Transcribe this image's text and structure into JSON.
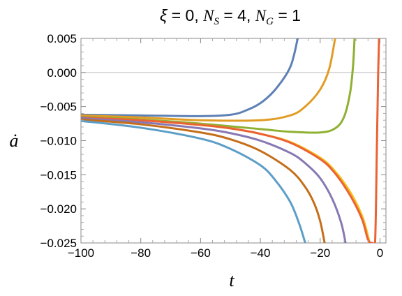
{
  "chart_data": {
    "type": "line",
    "title": "ξ = 0, N_S = 4, N_G = 1",
    "title_parts": {
      "xi": "ξ",
      "xi_value": " = 0, ",
      "ns_main": "N",
      "ns_sub": "S",
      "ns_value": " = 4, ",
      "ng_main": "N",
      "ng_sub": "G",
      "ng_value": " = 1"
    },
    "xlabel": "t",
    "ylabel": "ȧ",
    "xlim": [
      -100,
      2
    ],
    "ylim": [
      -0.025,
      0.005
    ],
    "x_ticks": [
      -100,
      -80,
      -60,
      -40,
      -20,
      0
    ],
    "x_tick_labels": [
      "−100",
      "−80",
      "−60",
      "−40",
      "−20",
      "0"
    ],
    "y_ticks": [
      0.005,
      0.0,
      -0.005,
      -0.01,
      -0.015,
      -0.02,
      -0.025
    ],
    "y_tick_labels": [
      "0.005",
      "0.000",
      "−0.005",
      "−0.010",
      "−0.015",
      "−0.020",
      "−0.025"
    ],
    "reference_line_y": 0,
    "grid": false,
    "legend": "none",
    "series": [
      {
        "color": "#5e81b5",
        "points": [
          [
            -100,
            -0.0062
          ],
          [
            -80,
            -0.0063
          ],
          [
            -60,
            -0.0064
          ],
          [
            -50,
            -0.0062
          ],
          [
            -45,
            -0.0056
          ],
          [
            -40,
            -0.0045
          ],
          [
            -35,
            -0.0025
          ],
          [
            -30,
            0.0008
          ],
          [
            -27.5,
            0.005
          ]
        ]
      },
      {
        "color": "#e19c24",
        "points": [
          [
            -100,
            -0.0063
          ],
          [
            -80,
            -0.0066
          ],
          [
            -60,
            -0.007
          ],
          [
            -40,
            -0.007
          ],
          [
            -30,
            -0.0063
          ],
          [
            -25,
            -0.005
          ],
          [
            -20,
            -0.0025
          ],
          [
            -17,
            0.0005
          ],
          [
            -15,
            0.005
          ]
        ]
      },
      {
        "color": "#8fb032",
        "points": [
          [
            -100,
            -0.0065
          ],
          [
            -80,
            -0.0069
          ],
          [
            -60,
            -0.0075
          ],
          [
            -40,
            -0.0083
          ],
          [
            -30,
            -0.0087
          ],
          [
            -20,
            -0.0088
          ],
          [
            -15,
            -0.0082
          ],
          [
            -12,
            -0.0065
          ],
          [
            -10,
            -0.003
          ],
          [
            -9,
            0.001
          ],
          [
            -8.5,
            0.005
          ]
        ]
      },
      {
        "color": "#f4c21a",
        "points": [
          [
            -100,
            -0.0066
          ],
          [
            -80,
            -0.007
          ],
          [
            -60,
            -0.0077
          ],
          [
            -50,
            -0.0082
          ],
          [
            -40,
            -0.009
          ],
          [
            -30,
            -0.0102
          ],
          [
            -20,
            -0.0125
          ],
          [
            -15,
            -0.0145
          ],
          [
            -10,
            -0.0175
          ],
          [
            -6,
            -0.021
          ],
          [
            -4,
            -0.024
          ],
          [
            -3.5,
            -0.025
          ]
        ]
      },
      {
        "color": "#eb6235",
        "points": [
          [
            -100,
            -0.0066
          ],
          [
            -80,
            -0.007
          ],
          [
            -60,
            -0.0077
          ],
          [
            -50,
            -0.0082
          ],
          [
            -40,
            -0.009
          ],
          [
            -30,
            -0.0103
          ],
          [
            -20,
            -0.0127
          ],
          [
            -15,
            -0.0148
          ],
          [
            -10,
            -0.018
          ],
          [
            -6,
            -0.0215
          ],
          [
            -4,
            -0.0245
          ],
          [
            -2.5,
            -0.025
          ],
          [
            -1.6,
            -0.0245
          ],
          [
            -1.0,
            -0.01
          ],
          [
            -0.6,
            0.0
          ],
          [
            -0.3,
            0.005
          ]
        ]
      },
      {
        "color": "#8778b3",
        "points": [
          [
            -100,
            -0.0067
          ],
          [
            -80,
            -0.0073
          ],
          [
            -60,
            -0.0082
          ],
          [
            -50,
            -0.0089
          ],
          [
            -40,
            -0.01
          ],
          [
            -30,
            -0.0118
          ],
          [
            -25,
            -0.0133
          ],
          [
            -20,
            -0.0155
          ],
          [
            -16,
            -0.0185
          ],
          [
            -13,
            -0.022
          ],
          [
            -11.5,
            -0.025
          ]
        ]
      },
      {
        "color": "#c56e1a",
        "points": [
          [
            -100,
            -0.0069
          ],
          [
            -80,
            -0.0076
          ],
          [
            -60,
            -0.0088
          ],
          [
            -50,
            -0.0098
          ],
          [
            -40,
            -0.0115
          ],
          [
            -30,
            -0.0143
          ],
          [
            -25,
            -0.0168
          ],
          [
            -22,
            -0.0192
          ],
          [
            -20,
            -0.0218
          ],
          [
            -18.5,
            -0.025
          ]
        ]
      },
      {
        "color": "#5d9ec7",
        "points": [
          [
            -100,
            -0.0071
          ],
          [
            -80,
            -0.0081
          ],
          [
            -60,
            -0.0097
          ],
          [
            -50,
            -0.0112
          ],
          [
            -40,
            -0.0136
          ],
          [
            -35,
            -0.0158
          ],
          [
            -30,
            -0.019
          ],
          [
            -27,
            -0.0222
          ],
          [
            -25,
            -0.025
          ]
        ]
      }
    ]
  }
}
